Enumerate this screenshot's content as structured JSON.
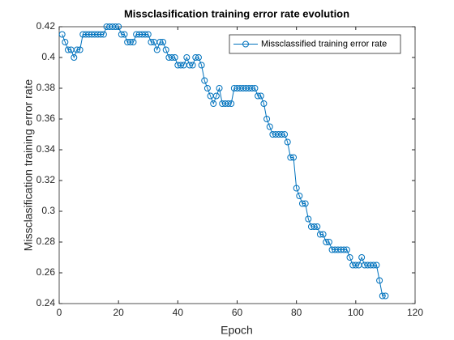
{
  "chart_data": {
    "type": "line",
    "title": "Missclasification training error rate evolution",
    "xlabel": "Epoch",
    "ylabel": "Missclasification training error rate",
    "x": [
      1,
      2,
      3,
      4,
      5,
      6,
      7,
      8,
      9,
      10,
      11,
      12,
      13,
      14,
      15,
      16,
      17,
      18,
      19,
      20,
      21,
      22,
      23,
      24,
      25,
      26,
      27,
      28,
      29,
      30,
      31,
      32,
      33,
      34,
      35,
      36,
      37,
      38,
      39,
      40,
      41,
      42,
      43,
      44,
      45,
      46,
      47,
      48,
      49,
      50,
      51,
      52,
      53,
      54,
      55,
      56,
      57,
      58,
      59,
      60,
      61,
      62,
      63,
      64,
      65,
      66,
      67,
      68,
      69,
      70,
      71,
      72,
      73,
      74,
      75,
      76,
      77,
      78,
      79,
      80,
      81,
      82,
      83,
      84,
      85,
      86,
      87,
      88,
      89,
      90,
      91,
      92,
      93,
      94,
      95,
      96,
      97,
      98,
      99,
      100,
      101,
      102,
      103,
      104,
      105,
      106,
      107,
      108,
      109,
      110
    ],
    "series": [
      {
        "name": "Missclassified training error rate",
        "color": "#0072bd",
        "values": [
          0.415,
          0.41,
          0.405,
          0.405,
          0.4,
          0.405,
          0.405,
          0.415,
          0.415,
          0.415,
          0.415,
          0.415,
          0.415,
          0.415,
          0.415,
          0.42,
          0.42,
          0.42,
          0.42,
          0.42,
          0.415,
          0.415,
          0.41,
          0.41,
          0.41,
          0.415,
          0.415,
          0.415,
          0.415,
          0.415,
          0.41,
          0.41,
          0.405,
          0.41,
          0.41,
          0.405,
          0.4,
          0.4,
          0.4,
          0.395,
          0.395,
          0.395,
          0.4,
          0.395,
          0.395,
          0.4,
          0.4,
          0.395,
          0.385,
          0.38,
          0.375,
          0.37,
          0.375,
          0.38,
          0.37,
          0.37,
          0.37,
          0.37,
          0.38,
          0.38,
          0.38,
          0.38,
          0.38,
          0.38,
          0.38,
          0.38,
          0.375,
          0.375,
          0.37,
          0.36,
          0.355,
          0.35,
          0.35,
          0.35,
          0.35,
          0.35,
          0.345,
          0.335,
          0.335,
          0.315,
          0.31,
          0.305,
          0.305,
          0.295,
          0.29,
          0.29,
          0.29,
          0.285,
          0.285,
          0.28,
          0.28,
          0.275,
          0.275,
          0.275,
          0.275,
          0.275,
          0.275,
          0.27,
          0.265,
          0.265,
          0.265,
          0.27,
          0.265,
          0.265,
          0.265,
          0.265,
          0.265,
          0.255,
          0.245,
          0.245
        ]
      }
    ],
    "xlim": [
      0,
      120
    ],
    "xticks": [
      0,
      20,
      40,
      60,
      80,
      100,
      120
    ],
    "ylim": [
      0.24,
      0.42
    ],
    "yticks": [
      0.24,
      0.26,
      0.28,
      0.3,
      0.32,
      0.34,
      0.36,
      0.38,
      0.4,
      0.42
    ],
    "legend": "northeast"
  }
}
